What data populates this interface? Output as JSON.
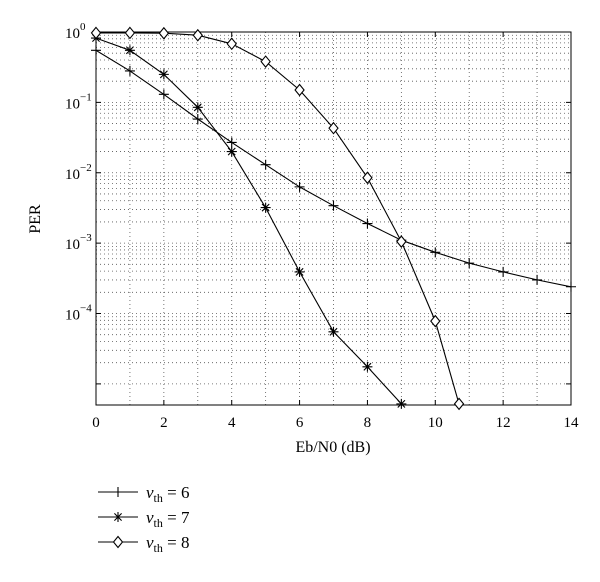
{
  "chart_data": {
    "type": "line",
    "xlabel": "Eb/N0 (dB)",
    "ylabel": "PER",
    "xlim": [
      0,
      14
    ],
    "ylim_log10": [
      -5.3,
      0
    ],
    "y_scale": "log",
    "grid": "dotted",
    "legend_placement": "below-left",
    "x_ticks": [
      "0",
      "2",
      "4",
      "6",
      "8",
      "10",
      "12",
      "14"
    ],
    "y_tick_base": "10",
    "y_tick_exponents": [
      "0",
      "−1",
      "−2",
      "−3",
      "−4"
    ],
    "series": [
      {
        "name_symbol": "v",
        "name_subscript": "th",
        "name_value": "= 6",
        "marker": "plus",
        "x": [
          0,
          1,
          2,
          3,
          4,
          5,
          6,
          7,
          8,
          9,
          10,
          11,
          12,
          13,
          14
        ],
        "y": [
          0.55,
          0.28,
          0.13,
          0.058,
          0.027,
          0.013,
          0.0063,
          0.0034,
          0.0019,
          0.0011,
          0.00074,
          0.00052,
          0.00039,
          0.0003,
          0.00024
        ]
      },
      {
        "name_symbol": "v",
        "name_subscript": "th",
        "name_value": "= 7",
        "marker": "star",
        "x": [
          0,
          1,
          2,
          3,
          4,
          5,
          6,
          7,
          8,
          9
        ],
        "y": [
          0.82,
          0.55,
          0.25,
          0.085,
          0.02,
          0.0032,
          0.00039,
          5.5e-05,
          1.75e-05,
          5.2e-06
        ]
      },
      {
        "name_symbol": "v",
        "name_subscript": "th",
        "name_value": "= 8",
        "marker": "diamond",
        "x": [
          0,
          1,
          2,
          3,
          4,
          5,
          6,
          7,
          8,
          9,
          10,
          10.7
        ],
        "y": [
          0.97,
          0.97,
          0.96,
          0.9,
          0.68,
          0.38,
          0.15,
          0.043,
          0.0085,
          0.00105,
          7.8e-05,
          5.2e-06
        ]
      }
    ]
  }
}
